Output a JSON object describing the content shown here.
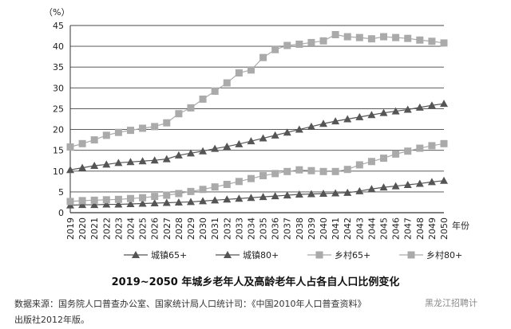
{
  "chart_data": {
    "type": "line",
    "title": "2019~2050 年城乡老年人及高龄老年人占各自人口比例变化",
    "ylabel": "（%）",
    "xlabel": "年份",
    "ylim": [
      0,
      45
    ],
    "yticks": [
      0,
      5,
      10,
      15,
      20,
      25,
      30,
      35,
      40,
      45
    ],
    "grid": "horizontal",
    "legend_position": "bottom",
    "categories": [
      "2019",
      "2020",
      "2021",
      "2022",
      "2023",
      "2024",
      "2025",
      "2026",
      "2027",
      "2028",
      "2029",
      "2030",
      "2031",
      "2032",
      "2033",
      "2034",
      "2035",
      "2036",
      "2037",
      "2038",
      "2039",
      "2040",
      "2041",
      "2042",
      "2043",
      "2044",
      "2045",
      "2046",
      "2047",
      "2048",
      "2049",
      "2050"
    ],
    "series": [
      {
        "name": "城镇65+",
        "marker": "triangle",
        "color": "#555555",
        "values": [
          10.3,
          10.8,
          11.3,
          11.6,
          12.0,
          12.2,
          12.4,
          12.6,
          12.9,
          13.8,
          14.3,
          14.8,
          15.4,
          15.9,
          16.5,
          17.2,
          17.9,
          18.6,
          19.3,
          20.0,
          20.7,
          21.4,
          22.0,
          22.5,
          23.0,
          23.5,
          24.0,
          24.4,
          24.8,
          25.3,
          25.8,
          26.2
        ]
      },
      {
        "name": "城镇80+",
        "marker": "triangle",
        "color": "#555555",
        "values": [
          1.8,
          1.9,
          1.9,
          2.0,
          2.0,
          2.1,
          2.2,
          2.3,
          2.4,
          2.5,
          2.6,
          2.8,
          3.0,
          3.2,
          3.4,
          3.6,
          3.8,
          4.0,
          4.2,
          4.4,
          4.5,
          4.6,
          4.7,
          4.8,
          5.2,
          5.7,
          6.1,
          6.4,
          6.7,
          7.0,
          7.4,
          7.7
        ]
      },
      {
        "name": "乡村65+",
        "marker": "square",
        "color": "#aaaaaa",
        "values": [
          15.8,
          16.6,
          17.5,
          18.6,
          19.3,
          19.8,
          20.3,
          20.7,
          21.6,
          23.8,
          25.2,
          27.3,
          29.2,
          31.2,
          33.6,
          34.3,
          37.3,
          39.2,
          40.2,
          40.5,
          40.9,
          41.3,
          42.8,
          42.3,
          42.1,
          41.8,
          42.3,
          42.1,
          41.9,
          41.5,
          41.2,
          40.8
        ]
      },
      {
        "name": "乡村80+",
        "marker": "square",
        "color": "#aaaaaa",
        "values": [
          2.7,
          2.9,
          3.0,
          3.1,
          3.2,
          3.4,
          3.6,
          3.9,
          4.2,
          4.6,
          5.1,
          5.6,
          6.2,
          6.8,
          7.5,
          8.2,
          8.9,
          9.4,
          9.9,
          10.3,
          10.1,
          9.9,
          9.9,
          10.4,
          11.5,
          12.3,
          13.1,
          14.1,
          14.8,
          15.5,
          16.1,
          16.6
        ]
      }
    ]
  },
  "caption": "2019~2050 年城乡老年人及高龄老年人占各自人口比例变化",
  "source_line1": "数据来源：国务院人口普查办公室、国家统计局人口统计司：《中国2010年人口普查资料》",
  "source_line2": "出版社2012年版。",
  "watermark": "黑龙江招聘计"
}
